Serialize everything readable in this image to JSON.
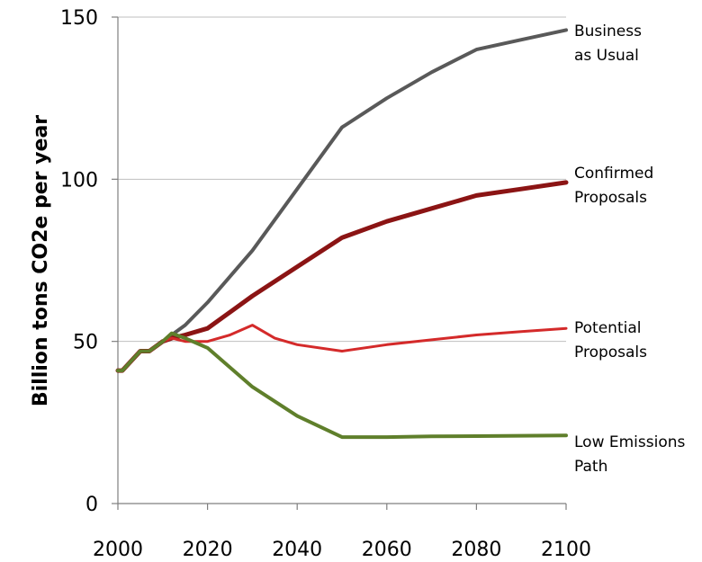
{
  "chart_data": {
    "type": "line",
    "title": "",
    "xlabel": "",
    "ylabel": "Billion tons CO2e per year",
    "xlim": [
      2000,
      2100
    ],
    "ylim": [
      0,
      150
    ],
    "x_ticks": [
      "2000",
      "2020",
      "2040",
      "2060",
      "2080",
      "2100"
    ],
    "y_ticks": [
      "0",
      "50",
      "100",
      "150"
    ],
    "grid": "horizontal",
    "series": [
      {
        "key": "bau",
        "name": [
          "Business",
          "as Usual"
        ],
        "color": "#595959",
        "width": 4,
        "x": [
          2000,
          2001,
          2003,
          2005,
          2007,
          2010,
          2012,
          2015,
          2020,
          2030,
          2040,
          2050,
          2060,
          2070,
          2080,
          2090,
          2100
        ],
        "y": [
          41,
          41,
          44,
          47,
          47,
          50,
          52,
          55,
          62,
          78,
          97,
          116,
          125,
          133,
          140,
          143,
          146
        ]
      },
      {
        "key": "confirmed",
        "name": [
          "Confirmed",
          "Proposals"
        ],
        "color": "#8b1414",
        "width": 5,
        "x": [
          2000,
          2001,
          2003,
          2005,
          2007,
          2010,
          2012,
          2015,
          2020,
          2030,
          2040,
          2050,
          2060,
          2070,
          2080,
          2090,
          2100
        ],
        "y": [
          41,
          41,
          44,
          47,
          47,
          50,
          51,
          52,
          54,
          64,
          73,
          82,
          87,
          91,
          95,
          97,
          99
        ]
      },
      {
        "key": "potential",
        "name": [
          "Potential",
          "Proposals"
        ],
        "color": "#d42a2a",
        "width": 3,
        "x": [
          2000,
          2001,
          2003,
          2005,
          2007,
          2010,
          2012,
          2015,
          2020,
          2025,
          2030,
          2035,
          2040,
          2050,
          2060,
          2070,
          2080,
          2090,
          2100
        ],
        "y": [
          41,
          41,
          44,
          47,
          47,
          50,
          51,
          50,
          50,
          52,
          55,
          51,
          49,
          47,
          49,
          50.5,
          52,
          53,
          54
        ]
      },
      {
        "key": "low",
        "name": [
          "Low Emissions",
          "Path"
        ],
        "color": "#5f7f2b",
        "width": 4,
        "x": [
          2000,
          2001,
          2003,
          2005,
          2007,
          2010,
          2012,
          2015,
          2020,
          2030,
          2040,
          2050,
          2060,
          2070,
          2080,
          2090,
          2100
        ],
        "y": [
          41,
          41,
          44,
          47,
          47,
          50,
          52.5,
          51,
          48,
          36,
          27,
          20.5,
          20.5,
          20.7,
          20.8,
          20.9,
          21
        ]
      }
    ],
    "label_positions_note": ""
  }
}
